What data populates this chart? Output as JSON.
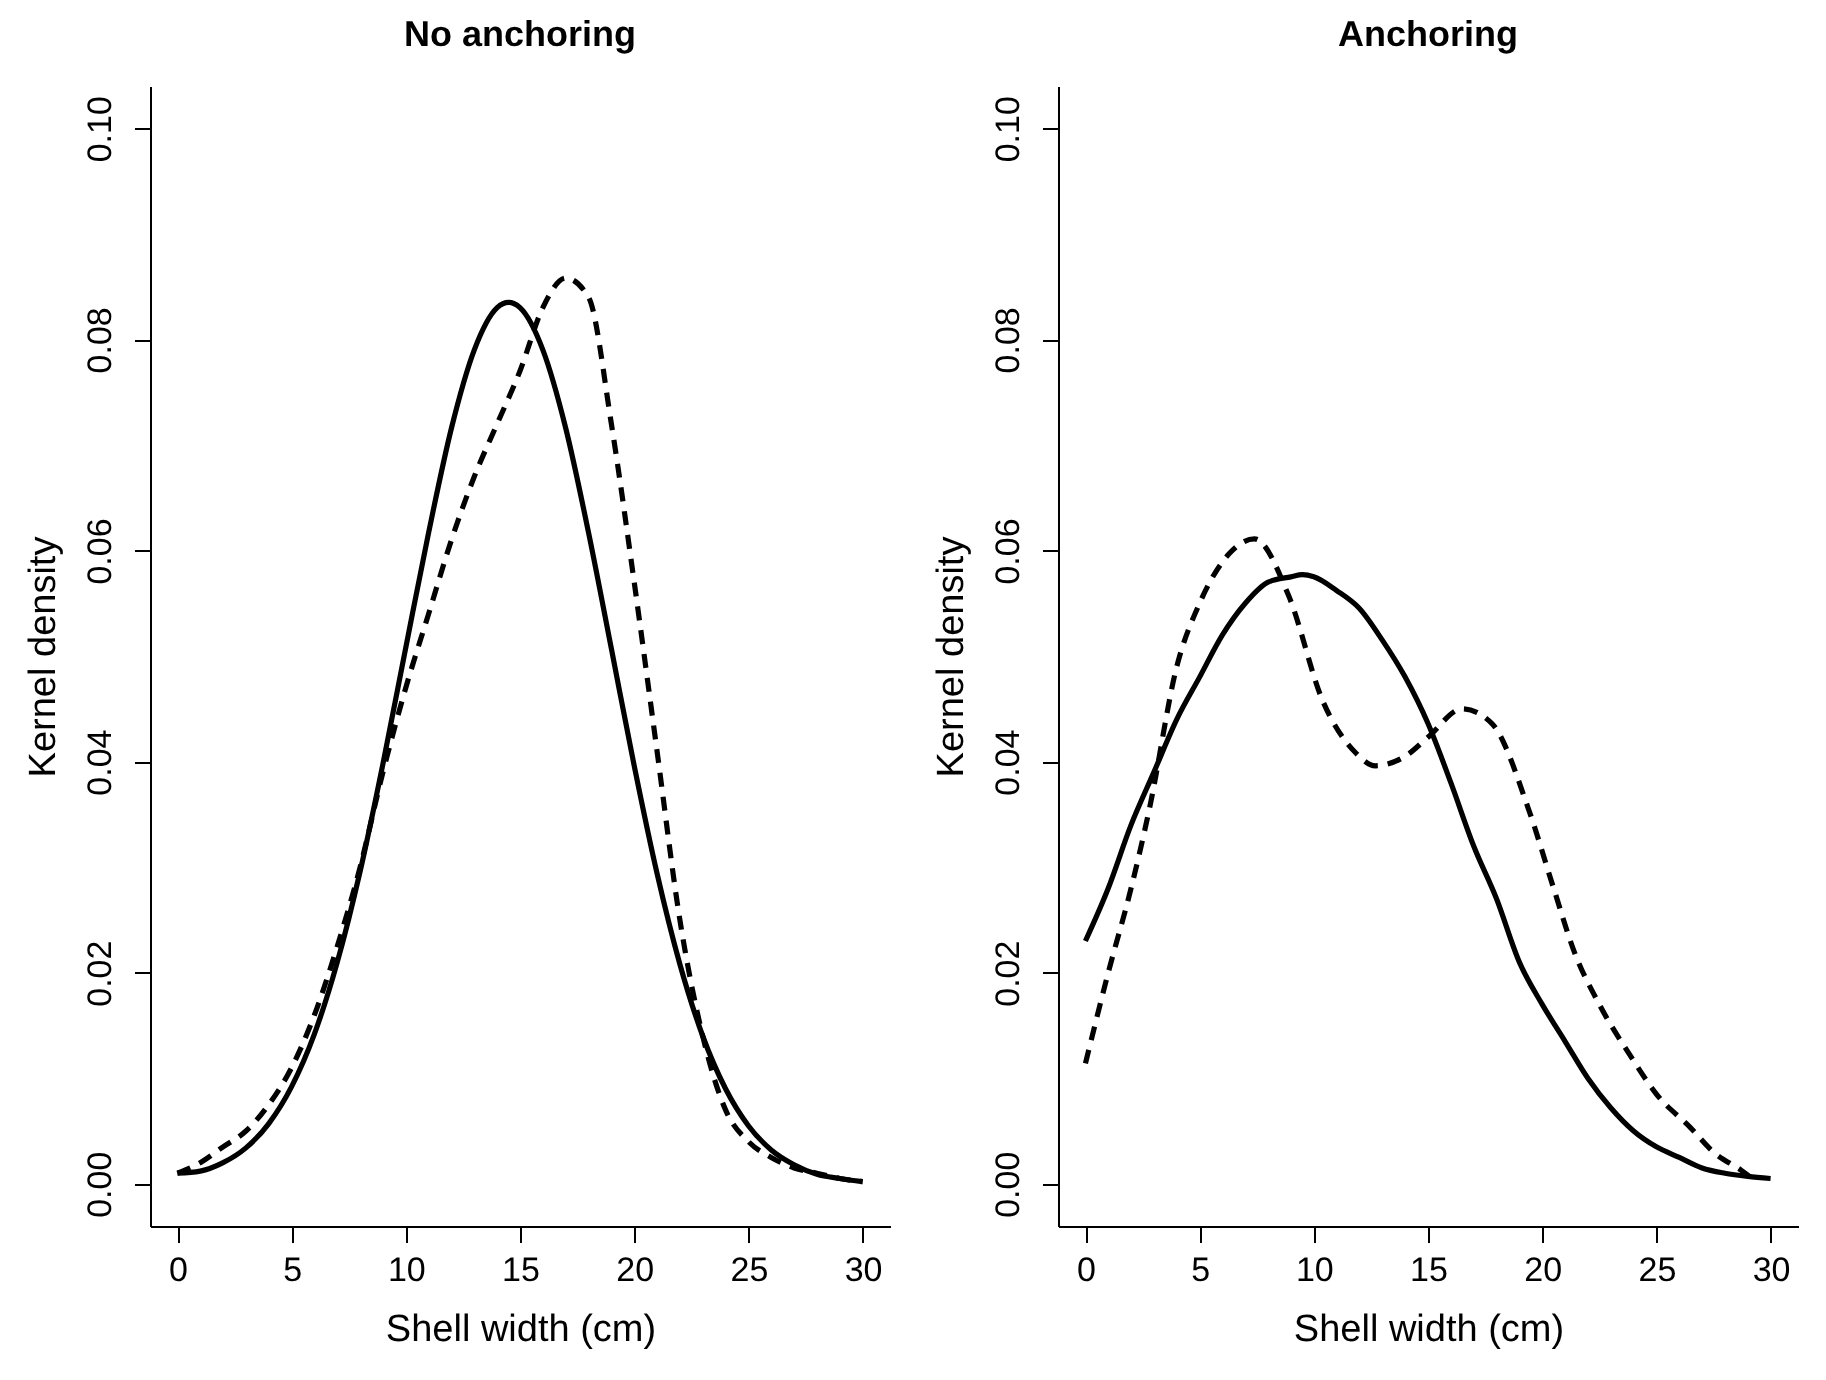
{
  "chart_data": [
    {
      "type": "line",
      "title": "No anchoring",
      "xlabel": "Shell width (cm)",
      "ylabel": "Kernel density",
      "xlim": [
        -1.2,
        31.2
      ],
      "xticks": [
        0,
        5,
        10,
        15,
        20,
        25,
        30
      ],
      "ylim": [
        -0.004,
        0.104
      ],
      "yticks": [
        {
          "value": 0,
          "label": "0.00"
        },
        {
          "value": 0.02,
          "label": "0.02"
        },
        {
          "value": 0.04,
          "label": "0.04"
        },
        {
          "value": 0.06,
          "label": "0.06"
        },
        {
          "value": 0.08,
          "label": "0.08"
        },
        {
          "value": 0.1,
          "label": "0.10"
        }
      ],
      "grid": false,
      "series": [
        {
          "color": "#000000",
          "line_style": "solid",
          "x": [
            0,
            1,
            2,
            3,
            4,
            5,
            6,
            7,
            8,
            9,
            10,
            11,
            12,
            13,
            14,
            14.5,
            15,
            16,
            17,
            18,
            19,
            20,
            21,
            22,
            23,
            24,
            25,
            26,
            27,
            28,
            29,
            30
          ],
          "values": [
            0.001,
            0.0012,
            0.002,
            0.0034,
            0.0057,
            0.0092,
            0.0142,
            0.021,
            0.0296,
            0.0398,
            0.0508,
            0.0617,
            0.0716,
            0.079,
            0.083,
            0.0835,
            0.083,
            0.079,
            0.0716,
            0.0617,
            0.0507,
            0.0396,
            0.0294,
            0.0208,
            0.014,
            0.009,
            0.0055,
            0.0032,
            0.0018,
            0.0009,
            0.0005,
            0.0002
          ]
        },
        {
          "color": "#000000",
          "line_style": "dashed",
          "x": [
            0,
            1,
            2,
            3,
            4,
            5,
            6,
            7,
            8,
            9,
            10,
            11,
            12,
            13,
            14,
            15,
            16,
            17,
            18,
            19,
            20,
            21,
            22,
            23,
            24,
            25,
            26,
            27,
            28,
            29,
            30
          ],
          "values": [
            0.001,
            0.002,
            0.0035,
            0.005,
            0.0075,
            0.011,
            0.016,
            0.0225,
            0.03,
            0.039,
            0.047,
            0.054,
            0.061,
            0.067,
            0.072,
            0.077,
            0.083,
            0.0858,
            0.084,
            0.072,
            0.057,
            0.041,
            0.025,
            0.014,
            0.007,
            0.004,
            0.0025,
            0.0015,
            0.001,
            0.0005,
            0.0002
          ]
        }
      ]
    },
    {
      "type": "line",
      "title": "Anchoring",
      "xlabel": "Shell width (cm)",
      "ylabel": "Kernel density",
      "xlim": [
        -1.2,
        31.2
      ],
      "xticks": [
        0,
        5,
        10,
        15,
        20,
        25,
        30
      ],
      "ylim": [
        -0.004,
        0.104
      ],
      "yticks": [
        {
          "value": 0,
          "label": "0.00"
        },
        {
          "value": 0.02,
          "label": "0.02"
        },
        {
          "value": 0.04,
          "label": "0.04"
        },
        {
          "value": 0.06,
          "label": "0.06"
        },
        {
          "value": 0.08,
          "label": "0.08"
        },
        {
          "value": 0.1,
          "label": "0.10"
        }
      ],
      "grid": false,
      "series": [
        {
          "color": "#000000",
          "line_style": "solid",
          "x": [
            0,
            1,
            2,
            3,
            4,
            5,
            6,
            7,
            8,
            9,
            9.5,
            10,
            11,
            12,
            13,
            14,
            15,
            16,
            17,
            18,
            19,
            20,
            21,
            22,
            23,
            24,
            25,
            26,
            27,
            28,
            29,
            30
          ],
          "values": [
            0.023,
            0.028,
            0.034,
            0.039,
            0.044,
            0.048,
            0.052,
            0.055,
            0.057,
            0.0575,
            0.0577,
            0.0575,
            0.0562,
            0.0545,
            0.0515,
            0.048,
            0.0436,
            0.038,
            0.032,
            0.027,
            0.021,
            0.017,
            0.0135,
            0.01,
            0.0072,
            0.005,
            0.0035,
            0.0025,
            0.0015,
            0.001,
            0.0007,
            0.0005
          ]
        },
        {
          "color": "#000000",
          "line_style": "dashed",
          "x": [
            0,
            1,
            2,
            2.8,
            4,
            5,
            6.3,
            7.4,
            8.9,
            10.4,
            11.8,
            12.7,
            14,
            15,
            16.5,
            17.8,
            19.4,
            20.5,
            21.4,
            22.5,
            23.9,
            25,
            26.5,
            27.5,
            28.7,
            29.2
          ],
          "values": [
            0.0114,
            0.02,
            0.028,
            0.0355,
            0.049,
            0.055,
            0.0597,
            0.0611,
            0.0557,
            0.0457,
            0.0409,
            0.0396,
            0.0405,
            0.0423,
            0.045,
            0.0436,
            0.0355,
            0.028,
            0.022,
            0.017,
            0.012,
            0.0085,
            0.0053,
            0.003,
            0.0013,
            0.0005
          ]
        }
      ]
    }
  ]
}
